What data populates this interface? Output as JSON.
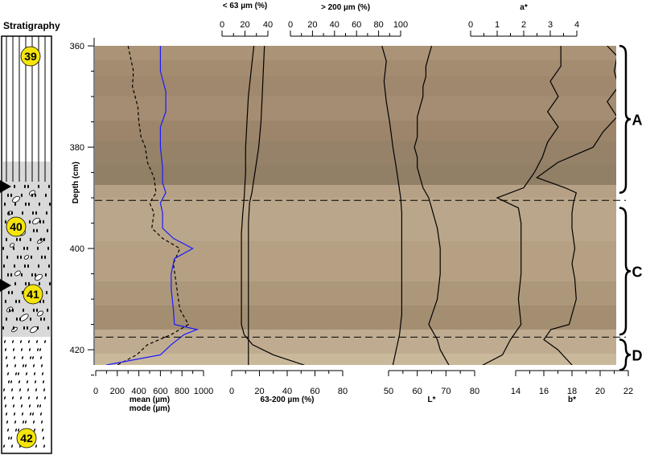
{
  "stratigraphy": {
    "title": "Stratigraphy",
    "units": [
      {
        "label": "39",
        "type": "laminated",
        "from_depth": 360,
        "to_depth": 385
      },
      {
        "label": "40",
        "type": "gravel-pebbles",
        "from_depth": 385,
        "to_depth": 405
      },
      {
        "label": "41",
        "type": "gravel-pebbles",
        "from_depth": 405,
        "to_depth": 418
      },
      {
        "label": "42",
        "type": "sand-dotted",
        "from_depth": 418,
        "to_depth": 440
      }
    ],
    "markers_at_depth": [
      389,
      408
    ]
  },
  "colors": {
    "mode_line": "#1a1aff",
    "core_dark": "#8f7860",
    "core_mid": "#b09a7e",
    "core_light": "#cbb89c"
  },
  "chart_data": {
    "type": "line",
    "y_axis": {
      "label": "Depth (cm)",
      "range": [
        360,
        426
      ],
      "ticks": [
        360,
        380,
        400,
        420
      ],
      "inverted": true
    },
    "grid": false,
    "units": [
      {
        "label": "A",
        "depth_range": [
          360,
          389
        ]
      },
      {
        "label": "C",
        "depth_range": [
          392,
          417
        ]
      },
      {
        "label": "D",
        "depth_range": [
          418,
          424
        ]
      }
    ],
    "boundaries_depth": [
      390.5,
      417.5
    ],
    "series": [
      {
        "name": "mean (µm)",
        "axis": "mean",
        "style": "dashed",
        "points": [
          [
            360,
            300
          ],
          [
            365,
            350
          ],
          [
            368,
            340
          ],
          [
            372,
            390
          ],
          [
            375,
            400
          ],
          [
            378,
            420
          ],
          [
            380,
            460
          ],
          [
            383,
            480
          ],
          [
            386,
            540
          ],
          [
            389,
            560
          ],
          [
            391,
            500
          ],
          [
            393,
            540
          ],
          [
            396,
            520
          ],
          [
            398,
            620
          ],
          [
            400,
            780
          ],
          [
            403,
            720
          ],
          [
            406,
            740
          ],
          [
            409,
            760
          ],
          [
            412,
            780
          ],
          [
            415,
            860
          ],
          [
            417,
            700
          ],
          [
            419,
            480
          ],
          [
            421,
            380
          ],
          [
            423,
            200
          ]
        ]
      },
      {
        "name": "mode (µm)",
        "axis": "mode",
        "style": "solid",
        "points": [
          [
            360,
            600
          ],
          [
            365,
            600
          ],
          [
            369,
            650
          ],
          [
            373,
            650
          ],
          [
            376,
            600
          ],
          [
            380,
            600
          ],
          [
            384,
            620
          ],
          [
            387,
            620
          ],
          [
            389,
            650
          ],
          [
            391,
            600
          ],
          [
            393,
            620
          ],
          [
            396,
            620
          ],
          [
            398,
            720
          ],
          [
            400,
            900
          ],
          [
            402,
            730
          ],
          [
            405,
            700
          ],
          [
            408,
            700
          ],
          [
            412,
            720
          ],
          [
            415,
            730
          ],
          [
            416,
            940
          ],
          [
            417,
            820
          ],
          [
            419,
            700
          ],
          [
            421,
            600
          ],
          [
            423,
            100
          ]
        ]
      },
      {
        "name": "< 63 µm (%)",
        "axis": "clay",
        "points": [
          [
            360,
            37
          ],
          [
            365,
            36
          ],
          [
            370,
            35
          ],
          [
            375,
            34
          ],
          [
            380,
            32
          ],
          [
            383,
            30
          ],
          [
            386,
            28
          ],
          [
            389,
            26
          ],
          [
            391,
            24
          ],
          [
            395,
            23
          ],
          [
            400,
            23
          ],
          [
            405,
            23
          ],
          [
            410,
            23
          ],
          [
            415,
            23
          ],
          [
            418,
            23
          ],
          [
            420,
            23
          ],
          [
            423,
            23
          ]
        ]
      },
      {
        "name": "63-200 µm (%)",
        "axis": "finesand",
        "points": [
          [
            360,
            16
          ],
          [
            365,
            14
          ],
          [
            370,
            12
          ],
          [
            375,
            11
          ],
          [
            380,
            10
          ],
          [
            385,
            10
          ],
          [
            390,
            9
          ],
          [
            393,
            8
          ],
          [
            397,
            7
          ],
          [
            400,
            7
          ],
          [
            405,
            7
          ],
          [
            410,
            7
          ],
          [
            415,
            7
          ],
          [
            417,
            9
          ],
          [
            419,
            15
          ],
          [
            421,
            30
          ],
          [
            423,
            52
          ],
          [
            425,
            63
          ]
        ]
      },
      {
        "name": "> 200 µm (%)",
        "axis": "coarse",
        "points": [
          [
            360,
            83
          ],
          [
            363,
            87
          ],
          [
            367,
            85
          ],
          [
            371,
            87
          ],
          [
            375,
            90
          ],
          [
            380,
            93
          ],
          [
            384,
            96
          ],
          [
            387,
            98
          ],
          [
            390,
            100
          ],
          [
            393,
            101
          ],
          [
            398,
            101
          ],
          [
            403,
            101
          ],
          [
            408,
            101
          ],
          [
            413,
            101
          ],
          [
            417,
            99
          ],
          [
            420,
            96
          ],
          [
            423,
            93
          ],
          [
            425,
            90
          ]
        ]
      },
      {
        "name": "L*",
        "axis": "lstar",
        "points": [
          [
            360,
            65
          ],
          [
            362,
            64
          ],
          [
            364,
            63
          ],
          [
            366,
            63
          ],
          [
            368,
            62
          ],
          [
            370,
            62
          ],
          [
            372,
            61
          ],
          [
            374,
            60
          ],
          [
            376,
            60
          ],
          [
            378,
            60
          ],
          [
            380,
            59
          ],
          [
            382,
            60
          ],
          [
            384,
            60
          ],
          [
            386,
            61
          ],
          [
            388,
            62
          ],
          [
            390,
            64
          ],
          [
            392,
            65
          ],
          [
            394,
            66
          ],
          [
            396,
            67
          ],
          [
            400,
            68
          ],
          [
            405,
            68
          ],
          [
            410,
            67
          ],
          [
            415,
            64
          ],
          [
            418,
            67
          ],
          [
            420,
            68
          ],
          [
            422,
            70
          ],
          [
            424,
            72
          ]
        ]
      },
      {
        "name": "a*",
        "axis": "astar",
        "points": [
          [
            360,
            3.4
          ],
          [
            364,
            3.4
          ],
          [
            367,
            3.0
          ],
          [
            370,
            3.3
          ],
          [
            373,
            2.9
          ],
          [
            376,
            3.3
          ],
          [
            379,
            2.9
          ],
          [
            382,
            2.7
          ],
          [
            385,
            2.4
          ],
          [
            388,
            2.0
          ],
          [
            390,
            1.0
          ],
          [
            392,
            1.8
          ],
          [
            395,
            1.9
          ],
          [
            400,
            1.9
          ],
          [
            405,
            1.9
          ],
          [
            410,
            1.8
          ],
          [
            415,
            1.9
          ],
          [
            418,
            1.5
          ],
          [
            421,
            1.2
          ],
          [
            424,
            0.1
          ]
        ]
      },
      {
        "name": "b*",
        "axis": "bstar",
        "points": [
          [
            360,
            20.5
          ],
          [
            362,
            21.2
          ],
          [
            365,
            21.0
          ],
          [
            368,
            21.3
          ],
          [
            371,
            20.5
          ],
          [
            374,
            21.2
          ],
          [
            377,
            20.2
          ],
          [
            380,
            19.5
          ],
          [
            383,
            17.0
          ],
          [
            386,
            15.5
          ],
          [
            388,
            17.5
          ],
          [
            389,
            18.3
          ],
          [
            391,
            18.1
          ],
          [
            393,
            18.0
          ],
          [
            396,
            18.0
          ],
          [
            400,
            18.2
          ],
          [
            403,
            18.0
          ],
          [
            406,
            18.2
          ],
          [
            410,
            18.3
          ],
          [
            413,
            18.0
          ],
          [
            415,
            17.8
          ],
          [
            416,
            16.5
          ],
          [
            418,
            16.0
          ],
          [
            420,
            17.0
          ],
          [
            423,
            18.0
          ],
          [
            425,
            17.5
          ]
        ]
      }
    ],
    "x_axes": [
      {
        "id": "clay",
        "label": "< 63 µm (%)",
        "position": "top",
        "range": [
          0,
          40
        ],
        "ticks": [
          0,
          20,
          40
        ]
      },
      {
        "id": "coarse",
        "label": "> 200 µm (%)",
        "position": "top",
        "range": [
          0,
          100
        ],
        "ticks": [
          0,
          20,
          40,
          60,
          80,
          100
        ]
      },
      {
        "id": "astar",
        "label": "a*",
        "position": "top",
        "range": [
          0,
          4
        ],
        "ticks": [
          0,
          1,
          2,
          3,
          4
        ]
      },
      {
        "id": "mean",
        "label": "mean (µm)",
        "label2": "mode (µm)",
        "position": "bottom",
        "range": [
          0,
          1000
        ],
        "ticks": [
          0,
          200,
          400,
          600,
          800,
          1000
        ]
      },
      {
        "id": "mode",
        "label": "",
        "position": "none",
        "range": [
          0,
          1000
        ],
        "ticks": []
      },
      {
        "id": "finesand",
        "label": "63-200 µm (%)",
        "position": "bottom",
        "range": [
          0,
          80
        ],
        "ticks": [
          0,
          20,
          40,
          60,
          80
        ]
      },
      {
        "id": "lstar",
        "label": "L*",
        "position": "bottom",
        "range": [
          50,
          80
        ],
        "ticks": [
          50,
          60,
          70,
          80
        ]
      },
      {
        "id": "bstar",
        "label": "b*",
        "position": "bottom",
        "range": [
          14,
          22
        ],
        "ticks": [
          14,
          16,
          18,
          20,
          22
        ]
      }
    ]
  }
}
